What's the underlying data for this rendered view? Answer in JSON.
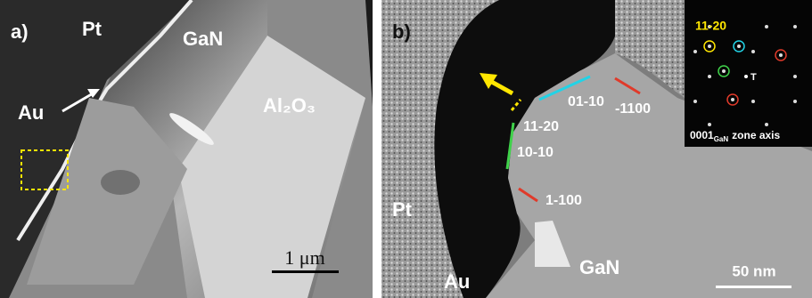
{
  "panels": [
    {
      "label": "a)",
      "regions": [
        "Pt",
        "GaN",
        "Au",
        "Al₂O₃"
      ],
      "scale_bar": "1 μm"
    },
    {
      "label": "b)",
      "regions": [
        "Pt",
        "Au",
        "GaN"
      ],
      "facets": [
        "01-10",
        "-1100",
        "11-20",
        "10-10",
        "1-100"
      ],
      "scale_bar": "50 nm",
      "inset": {
        "spot_label": "11-20",
        "center_label": "T",
        "zone_axis": {
          "index": "0001",
          "subscript": "GaN",
          "text": "zone axis"
        }
      }
    }
  ]
}
